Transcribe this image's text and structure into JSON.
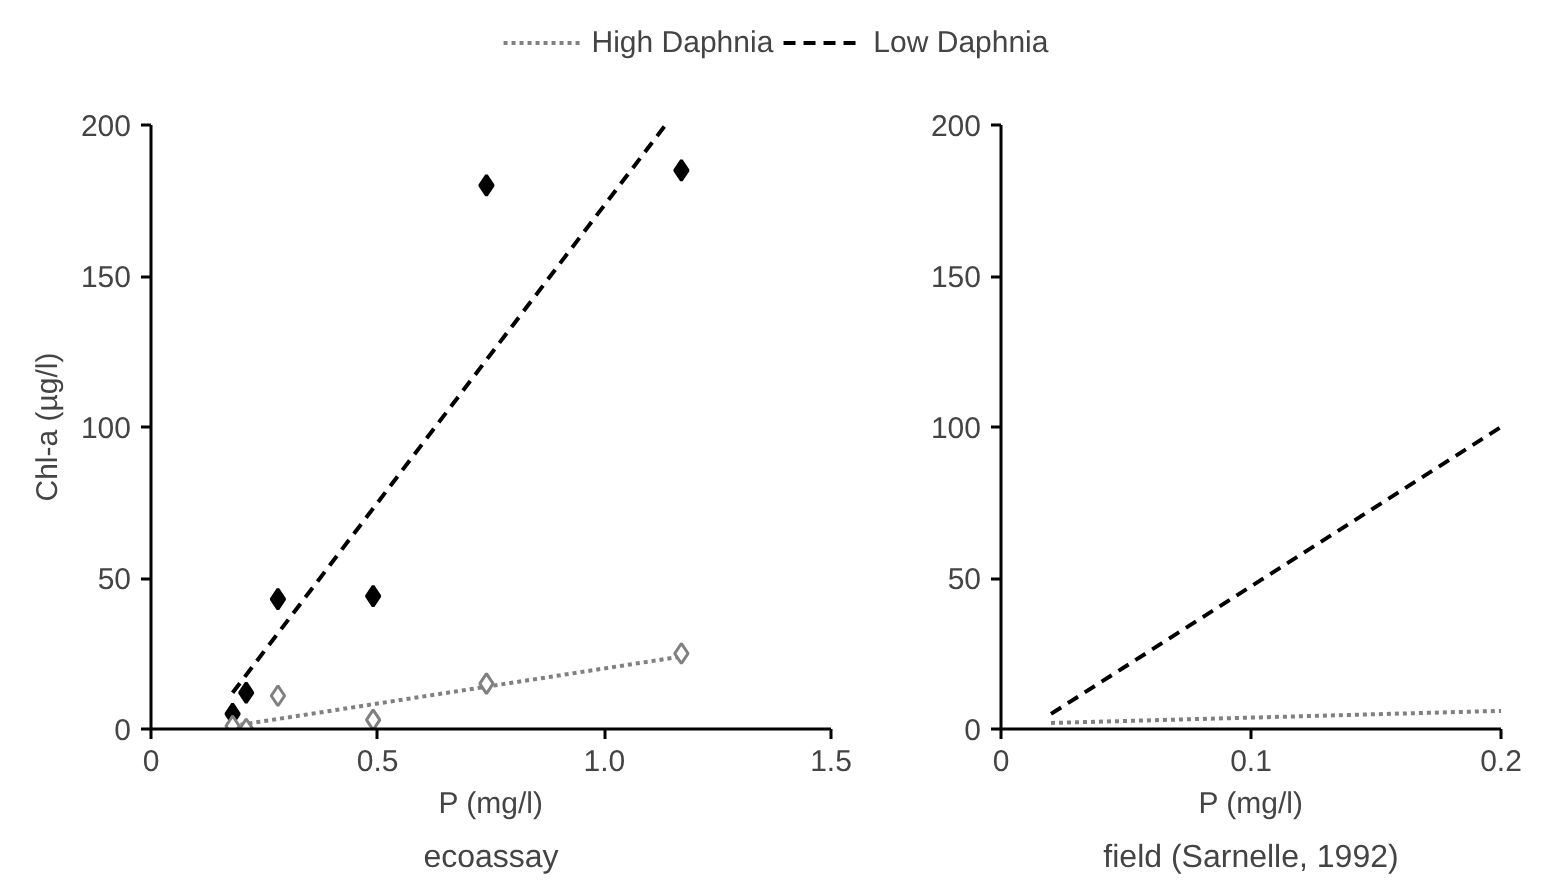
{
  "chart_data": [
    {
      "type": "scatter",
      "title": "ecoassay",
      "xlabel": "P (mg/l)",
      "ylabel": "Chl-a (µg/l)",
      "xlim": [
        0,
        1.5
      ],
      "ylim": [
        0,
        200
      ],
      "xticks": [
        0,
        0.5,
        {
          "value": 1.0,
          "label": "1.0"
        },
        1.5
      ],
      "yticks": [
        0,
        50,
        100,
        150,
        200
      ],
      "grid": false,
      "legend": "top",
      "series": [
        {
          "name": "High Daphnia",
          "type": "line",
          "line_style": "dotted",
          "color": "#808080",
          "x": [
            0.18,
            1.17
          ],
          "values": [
            1,
            24
          ]
        },
        {
          "name": "Low Daphnia",
          "type": "line",
          "line_style": "dashed",
          "color": "#000000",
          "x": [
            0.18,
            1.135
          ],
          "values": [
            12,
            200
          ]
        },
        {
          "marker": "diamond",
          "color": "#000000",
          "x": [
            0.18,
            0.21,
            0.28,
            0.49,
            0.74,
            1.17
          ],
          "values": [
            5,
            12,
            43,
            44,
            180,
            185
          ]
        },
        {
          "marker": "diamond",
          "color": "#808080",
          "x": [
            0.18,
            0.21,
            0.28,
            0.49,
            0.74,
            1.17
          ],
          "values": [
            1,
            0,
            11,
            3,
            15,
            25
          ]
        }
      ]
    },
    {
      "type": "line",
      "title": "field (Sarnelle, 1992)",
      "xlabel": "P (mg/l)",
      "xlim": [
        0,
        0.2
      ],
      "ylim": [
        0,
        200
      ],
      "xticks": [
        0,
        0.1,
        0.2
      ],
      "yticks": [
        0,
        50,
        100,
        150,
        200
      ],
      "grid": false,
      "series": [
        {
          "line_style": "dotted",
          "color": "#808080",
          "x": [
            0.02,
            0.2
          ],
          "values": [
            2,
            6
          ]
        },
        {
          "line_style": "dashed",
          "color": "#000000",
          "x": [
            0.02,
            0.2
          ],
          "values": [
            5,
            100
          ]
        }
      ]
    }
  ]
}
